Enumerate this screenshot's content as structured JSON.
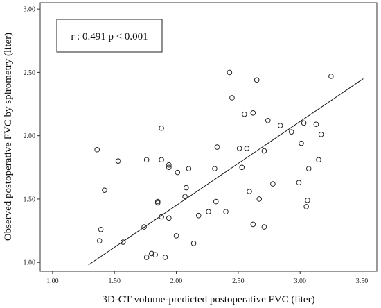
{
  "chart_data": {
    "type": "scatter",
    "title": "",
    "xlabel": "3D-CT volume-predicted postoperative FVC (liter)",
    "ylabel": "Observed postoperative FVC by spirometry (liter)",
    "xlim": [
      0.9,
      3.62
    ],
    "ylim": [
      0.93,
      3.05
    ],
    "x_ticks": [
      "1.00",
      "1.50",
      "2.00",
      "2.50",
      "3.00",
      "3.50"
    ],
    "y_ticks": [
      "1.00",
      "1.50",
      "2.00",
      "2.50",
      "3.00"
    ],
    "annotation": "r : 0.491 p < 0.001",
    "grid": false,
    "fit_line": {
      "x": [
        1.29,
        3.51
      ],
      "y": [
        0.98,
        2.45
      ]
    },
    "points": [
      {
        "x": 2.43,
        "y": 2.5
      },
      {
        "x": 2.65,
        "y": 2.44
      },
      {
        "x": 3.25,
        "y": 2.47
      },
      {
        "x": 2.45,
        "y": 2.3
      },
      {
        "x": 2.55,
        "y": 2.17
      },
      {
        "x": 2.62,
        "y": 2.18
      },
      {
        "x": 2.74,
        "y": 2.12
      },
      {
        "x": 2.84,
        "y": 2.08
      },
      {
        "x": 2.93,
        "y": 2.03
      },
      {
        "x": 3.13,
        "y": 2.09
      },
      {
        "x": 3.17,
        "y": 2.01
      },
      {
        "x": 3.03,
        "y": 2.1
      },
      {
        "x": 3.01,
        "y": 1.94
      },
      {
        "x": 1.88,
        "y": 2.06
      },
      {
        "x": 2.33,
        "y": 1.91
      },
      {
        "x": 2.51,
        "y": 1.9
      },
      {
        "x": 2.57,
        "y": 1.9
      },
      {
        "x": 2.71,
        "y": 1.88
      },
      {
        "x": 1.36,
        "y": 1.89
      },
      {
        "x": 1.53,
        "y": 1.8
      },
      {
        "x": 1.76,
        "y": 1.81
      },
      {
        "x": 1.88,
        "y": 1.81
      },
      {
        "x": 1.94,
        "y": 1.77
      },
      {
        "x": 1.94,
        "y": 1.75
      },
      {
        "x": 2.1,
        "y": 1.74
      },
      {
        "x": 2.01,
        "y": 1.71
      },
      {
        "x": 2.31,
        "y": 1.74
      },
      {
        "x": 2.53,
        "y": 1.75
      },
      {
        "x": 3.07,
        "y": 1.74
      },
      {
        "x": 3.15,
        "y": 1.81
      },
      {
        "x": 1.42,
        "y": 1.57
      },
      {
        "x": 2.08,
        "y": 1.59
      },
      {
        "x": 2.07,
        "y": 1.52
      },
      {
        "x": 2.59,
        "y": 1.56
      },
      {
        "x": 2.78,
        "y": 1.62
      },
      {
        "x": 2.99,
        "y": 1.63
      },
      {
        "x": 1.85,
        "y": 1.48
      },
      {
        "x": 1.85,
        "y": 1.47
      },
      {
        "x": 2.32,
        "y": 1.48
      },
      {
        "x": 2.67,
        "y": 1.5
      },
      {
        "x": 3.06,
        "y": 1.49
      },
      {
        "x": 3.05,
        "y": 1.44
      },
      {
        "x": 2.26,
        "y": 1.4
      },
      {
        "x": 2.18,
        "y": 1.37
      },
      {
        "x": 2.4,
        "y": 1.4
      },
      {
        "x": 1.88,
        "y": 1.36
      },
      {
        "x": 1.94,
        "y": 1.35
      },
      {
        "x": 1.74,
        "y": 1.28
      },
      {
        "x": 2.62,
        "y": 1.3
      },
      {
        "x": 2.71,
        "y": 1.28
      },
      {
        "x": 1.39,
        "y": 1.26
      },
      {
        "x": 1.38,
        "y": 1.17
      },
      {
        "x": 1.57,
        "y": 1.16
      },
      {
        "x": 2.0,
        "y": 1.21
      },
      {
        "x": 2.14,
        "y": 1.15
      },
      {
        "x": 1.8,
        "y": 1.07
      },
      {
        "x": 1.83,
        "y": 1.06
      },
      {
        "x": 1.76,
        "y": 1.04
      },
      {
        "x": 1.91,
        "y": 1.04
      }
    ]
  }
}
